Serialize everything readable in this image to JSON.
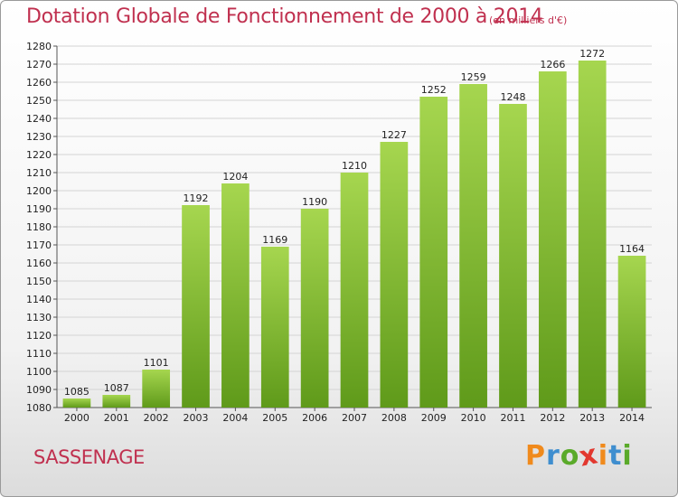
{
  "title": "Dotation Globale de Fonctionnement de 2000 à 2014",
  "subtitle": "(en milliers d'€)",
  "city": "SASSENAGE",
  "logo": {
    "letters": [
      "P",
      "r",
      "o",
      "x",
      "i",
      "t",
      "i"
    ],
    "colors": [
      "#f08a1c",
      "#3f8ecf",
      "#5aaa2a",
      "#e2382f",
      "#f08a1c",
      "#3f8ecf",
      "#5aaa2a"
    ]
  },
  "colors": {
    "bar_top": "#a6d64f",
    "bar_bottom": "#5f9a1a",
    "accent": "#c0304f"
  },
  "chart_data": {
    "type": "bar",
    "title": "Dotation Globale de Fonctionnement de 2000 à 2014",
    "subtitle": "(en milliers d'€)",
    "xlabel": "",
    "ylabel": "",
    "categories": [
      "2000",
      "2001",
      "2002",
      "2003",
      "2004",
      "2005",
      "2006",
      "2007",
      "2008",
      "2009",
      "2010",
      "2011",
      "2012",
      "2013",
      "2014"
    ],
    "values": [
      1085,
      1087,
      1101,
      1192,
      1204,
      1169,
      1190,
      1210,
      1227,
      1252,
      1259,
      1248,
      1266,
      1272,
      1164
    ],
    "ylim": [
      1080,
      1280
    ],
    "yticks": [
      1080,
      1090,
      1100,
      1110,
      1120,
      1130,
      1140,
      1150,
      1160,
      1170,
      1180,
      1190,
      1200,
      1210,
      1220,
      1230,
      1240,
      1250,
      1260,
      1270,
      1280
    ],
    "grid": true,
    "legend": "none"
  }
}
